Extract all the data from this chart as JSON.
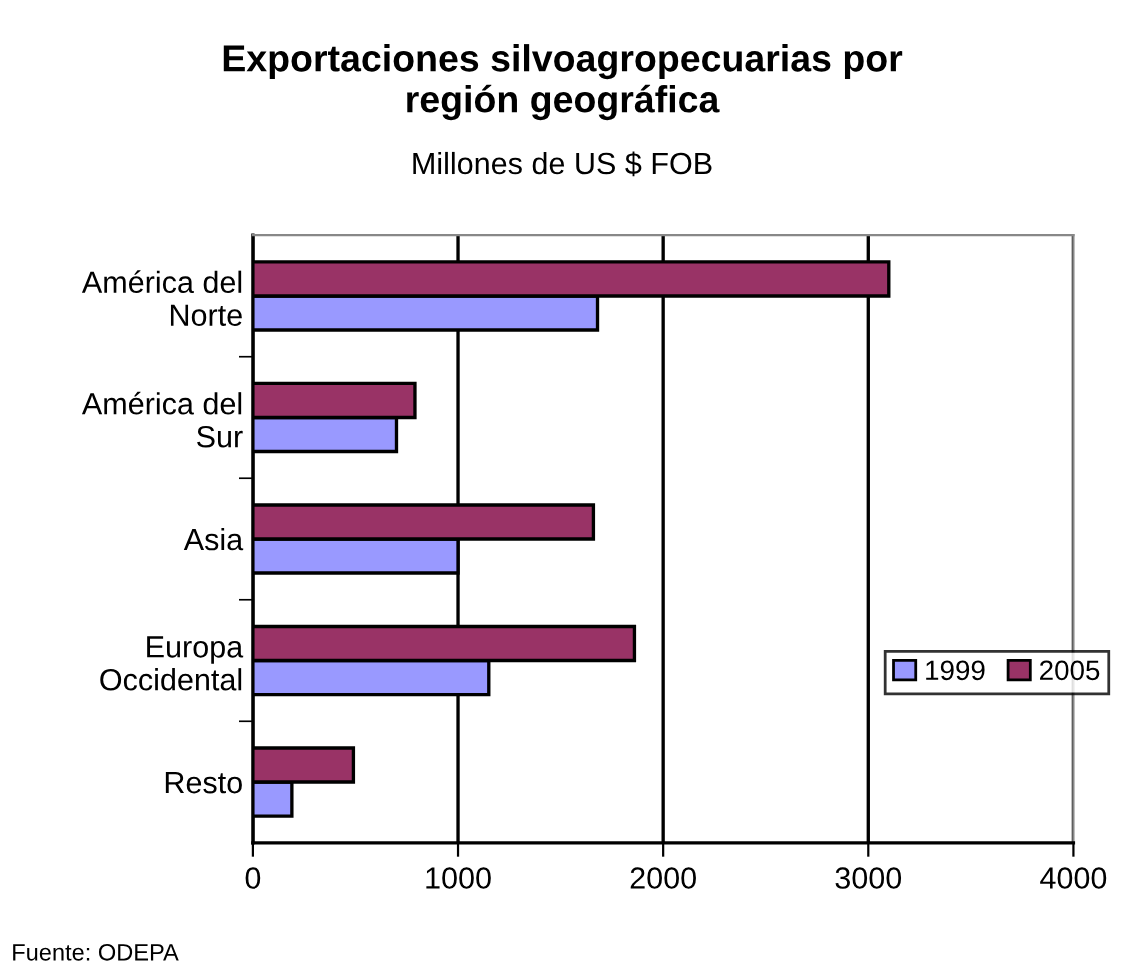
{
  "chart_data": {
    "type": "bar",
    "orientation": "horizontal",
    "title": "Exportaciones silvoagropecuarias por\nregión geográfica",
    "subtitle": "Millones de US $ FOB",
    "categories": [
      "América del\nNorte",
      "América del\nSur",
      "Asia",
      "Europa\nOccidental",
      "Resto"
    ],
    "series": [
      {
        "name": "1999",
        "color": "#9999ff",
        "values": [
          1680,
          700,
          1000,
          1150,
          190
        ]
      },
      {
        "name": "2005",
        "color": "#993366",
        "values": [
          3100,
          790,
          1660,
          1860,
          490
        ]
      }
    ],
    "xlim": [
      0,
      4000
    ],
    "xticks": [
      0,
      1000,
      2000,
      3000,
      4000
    ],
    "grid": "x",
    "legend": "right",
    "annotations": [
      "Fuente: ODEPA"
    ]
  }
}
